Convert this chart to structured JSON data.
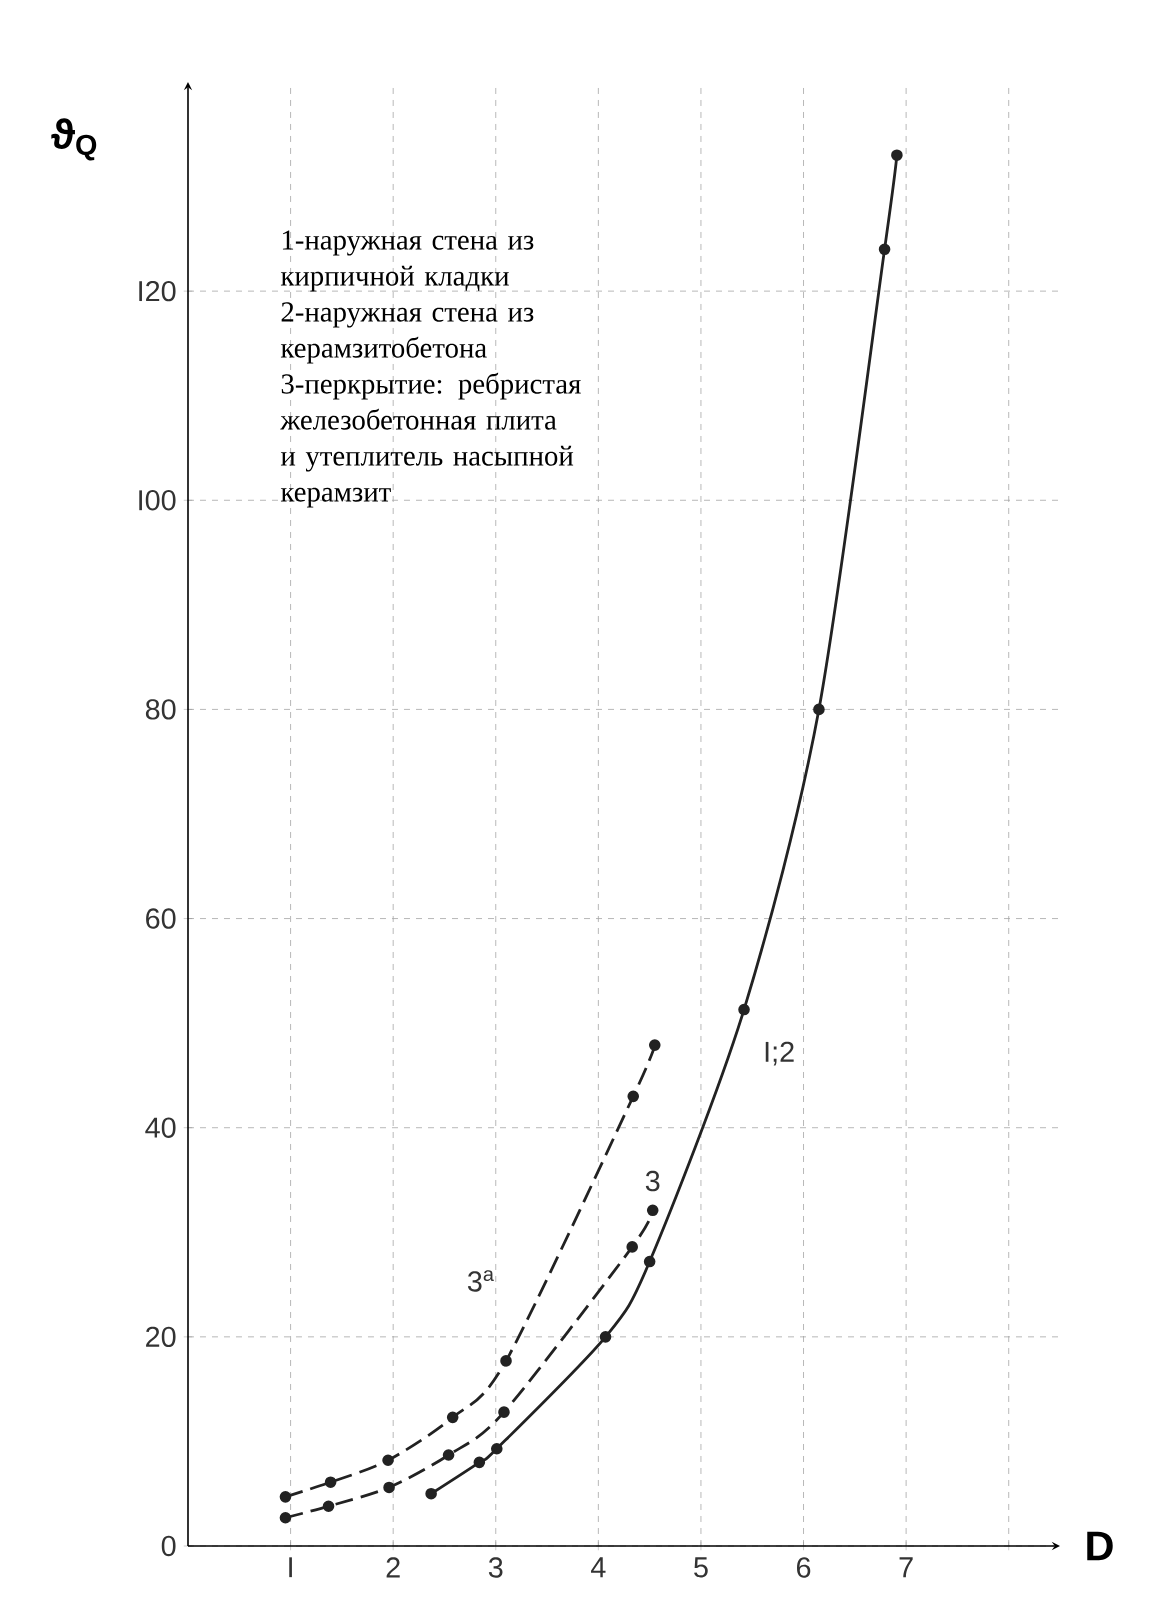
{
  "chart_data": {
    "type": "line",
    "xlabel": "D",
    "ylabel": "ϑ$_{Q}$",
    "annotations": [
      "1-наружная стена из кирпичной кладки",
      "2-наружная стена из керамзитобетона",
      "3-перкрытие: ребристая железобетонная плита и утеплитель насыпной керамзит"
    ],
    "series": [
      {
        "name": "I;2",
        "color": "#222222",
        "line_style": "solid",
        "x": [
          2.37,
          2.84,
          3.01,
          4.07,
          4.5,
          5.42,
          6.15,
          6.79,
          6.91
        ],
        "values": [
          5.0,
          8.0,
          9.3,
          20.0,
          27.2,
          51.3,
          80,
          124,
          133
        ]
      },
      {
        "name": "3",
        "color": "#222222",
        "line_style": "dashed",
        "x": [
          0.95,
          1.37,
          1.96,
          2.54,
          3.08,
          4.33,
          4.53
        ],
        "values": [
          2.7,
          3.8,
          5.6,
          8.7,
          12.8,
          28.6,
          32.1
        ]
      },
      {
        "name": "3$^{a}$",
        "color": "#222222",
        "line_style": "dashed",
        "x": [
          0.95,
          1.39,
          1.95,
          2.58,
          3.1,
          4.34,
          4.55
        ],
        "values": [
          4.7,
          6.1,
          8.2,
          12.3,
          17.7,
          43.0,
          47.9
        ]
      }
    ],
    "marker": "circle",
    "grid": true,
    "xlim": [
      0,
      8.5
    ],
    "ylim": [
      0,
      140
    ],
    "xticks": [
      {
        "value": 1,
        "label": "I"
      },
      2,
      3,
      4,
      5,
      6,
      7,
      {
        "value": 8,
        "label": null
      }
    ],
    "yticks": [
      0,
      20,
      40,
      60,
      80,
      {
        "value": 100,
        "label": "I00"
      },
      {
        "value": 120,
        "label": "I20"
      }
    ]
  }
}
